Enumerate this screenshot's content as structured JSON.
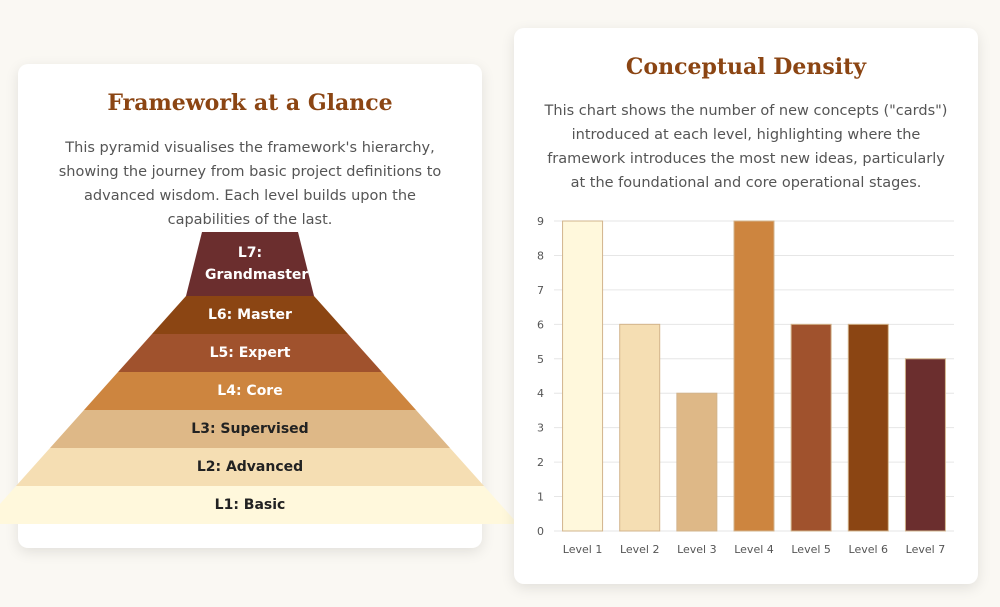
{
  "left_card": {
    "title": "Framework at a Glance",
    "description": "This pyramid visualises the framework's hierarchy, showing the journey from basic project definitions to advanced wisdom. Each level builds upon the capabilities of the last.",
    "levels": [
      {
        "label": "L7: Grandmaster",
        "color": "#6b2e2e",
        "text_color": "#ffffff"
      },
      {
        "label": "L6: Master",
        "color": "#8b4513",
        "text_color": "#ffffff"
      },
      {
        "label": "L5: Expert",
        "color": "#a0522d",
        "text_color": "#ffffff"
      },
      {
        "label": "L4: Core",
        "color": "#cd853f",
        "text_color": "#ffffff"
      },
      {
        "label": "L3: Supervised",
        "color": "#deb887",
        "text_color": "#222222"
      },
      {
        "label": "L2: Advanced",
        "color": "#f5deb3",
        "text_color": "#222222"
      },
      {
        "label": "L1: Basic",
        "color": "#fff8dc",
        "text_color": "#222222"
      }
    ]
  },
  "right_card": {
    "title": "Conceptual Density",
    "description": "This chart shows the number of new concepts (\"cards\") introduced at each level, highlighting where the framework introduces the most new ideas, particularly at the foundational and core operational stages."
  },
  "chart_data": {
    "type": "bar",
    "categories": [
      "Level 1",
      "Level 2",
      "Level 3",
      "Level 4",
      "Level 5",
      "Level 6",
      "Level 7"
    ],
    "values": [
      9,
      6,
      4,
      9,
      6,
      6,
      5
    ],
    "colors": [
      "#fff8dc",
      "#f5deb3",
      "#deb887",
      "#cd853f",
      "#a0522d",
      "#8b4513",
      "#6b2e2e"
    ],
    "yticks": [
      "0",
      "1",
      "2",
      "3",
      "4",
      "5",
      "6",
      "7",
      "8",
      "9"
    ],
    "ylim": [
      0,
      9
    ],
    "grid": true,
    "legend": "none"
  }
}
